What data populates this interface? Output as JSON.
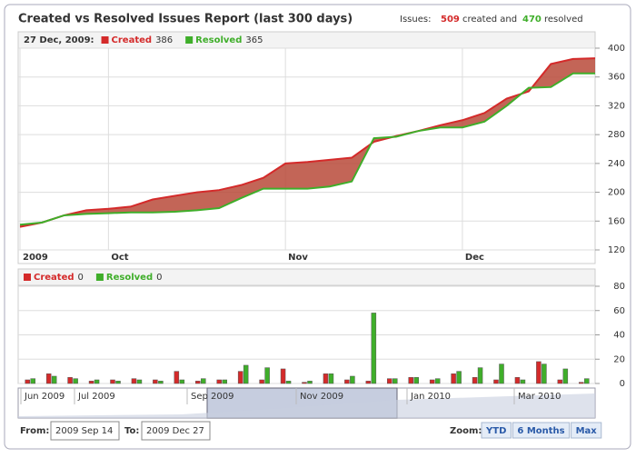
{
  "header": {
    "title": "Created vs Resolved Issues Report (last 300 days)",
    "issues_label": "Issues:",
    "created_total": 509,
    "created_word": "created and",
    "resolved_total": 470,
    "resolved_word": "resolved"
  },
  "chart_data": [
    {
      "type": "line",
      "fill_between": true,
      "hover_label": "27 Dec, 2009:",
      "categories": [
        "2009",
        null,
        null,
        null,
        "Oct",
        null,
        null,
        null,
        null,
        null,
        null,
        null,
        "Nov",
        null,
        null,
        null,
        null,
        null,
        null,
        null,
        "Dec",
        null,
        null,
        null,
        null,
        null,
        null
      ],
      "series": [
        {
          "name": "Created",
          "color": "#d42a2a",
          "values": [
            152,
            158,
            168,
            175,
            177,
            180,
            190,
            195,
            200,
            203,
            210,
            220,
            240,
            242,
            245,
            248,
            270,
            278,
            285,
            293,
            300,
            310,
            330,
            340,
            378,
            385,
            386
          ]
        },
        {
          "name": "Resolved",
          "color": "#3fae2a",
          "values": [
            155,
            158,
            168,
            170,
            171,
            172,
            172,
            173,
            175,
            178,
            192,
            205,
            205,
            205,
            208,
            215,
            275,
            277,
            285,
            290,
            290,
            298,
            320,
            345,
            346,
            365,
            365
          ]
        }
      ],
      "ylim": [
        120,
        400
      ],
      "yticks": [
        120,
        160,
        200,
        240,
        280,
        320,
        360,
        400
      ],
      "grid": true
    },
    {
      "type": "bar",
      "hover_values": [
        0,
        0
      ],
      "series": [
        {
          "name": "Created",
          "color": "#d42a2a",
          "values": [
            3,
            8,
            5,
            2,
            3,
            4,
            3,
            10,
            2,
            3,
            10,
            3,
            12,
            1,
            8,
            3,
            2,
            4,
            5,
            3,
            8,
            5,
            3,
            5,
            18,
            3,
            1
          ]
        },
        {
          "name": "Resolved",
          "color": "#3fae2a",
          "values": [
            4,
            6,
            4,
            3,
            2,
            3,
            2,
            3,
            4,
            3,
            15,
            13,
            2,
            2,
            8,
            6,
            58,
            4,
            5,
            4,
            10,
            13,
            16,
            3,
            16,
            12,
            4
          ]
        }
      ],
      "ylim": [
        0,
        80
      ],
      "yticks": [
        0,
        20,
        40,
        60,
        80
      ],
      "grid": true
    }
  ],
  "navigator": {
    "labels": [
      "Jun 2009",
      "Jul 2009",
      "Sep 2009",
      "Nov 2009",
      "Jan 2010",
      "Mar 2010"
    ]
  },
  "range": {
    "from_label": "From:",
    "from": "2009 Sep 14",
    "to_label": "To:",
    "to": "2009 Dec 27"
  },
  "zoom": {
    "label": "Zoom:",
    "buttons": [
      "YTD",
      "6 Months",
      "Max"
    ]
  }
}
